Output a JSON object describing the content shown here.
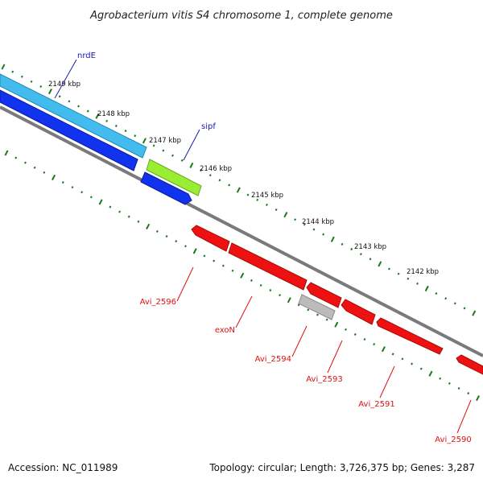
{
  "title": "Agrobacterium vitis S4 chromosome 1, complete genome",
  "footer": {
    "accession": "Accession: NC_011989",
    "topology": "Topology: circular; Length: 3,726,375 bp; Genes: 3,287"
  },
  "colors": {
    "backbone": "#7a7a7a",
    "tick": "#1a7a1a",
    "forward_label": "#1a1ab0",
    "reverse_label": "#dd1111",
    "cds_forward": "#1133ee",
    "rna": "#44bbee",
    "misc": "#99ee33",
    "cds_reverse": "#ee1111",
    "pseudo": "#bbbbbb"
  },
  "kbp_labels": [
    "2149 kbp",
    "2148 kbp",
    "2147 kbp",
    "2146 kbp",
    "2145 kbp",
    "2144 kbp",
    "2143 kbp",
    "2142 kbp"
  ],
  "genes": [
    {
      "label": "nrdE",
      "strand": "forward"
    },
    {
      "label": "sipf",
      "strand": "forward"
    },
    {
      "label": "Avi_2596",
      "strand": "reverse"
    },
    {
      "label": "exoN",
      "strand": "reverse"
    },
    {
      "label": "Avi_2594",
      "strand": "reverse"
    },
    {
      "label": "Avi_2593",
      "strand": "reverse"
    },
    {
      "label": "Avi_2591",
      "strand": "reverse"
    },
    {
      "label": "Avi_2590",
      "strand": "reverse"
    }
  ]
}
